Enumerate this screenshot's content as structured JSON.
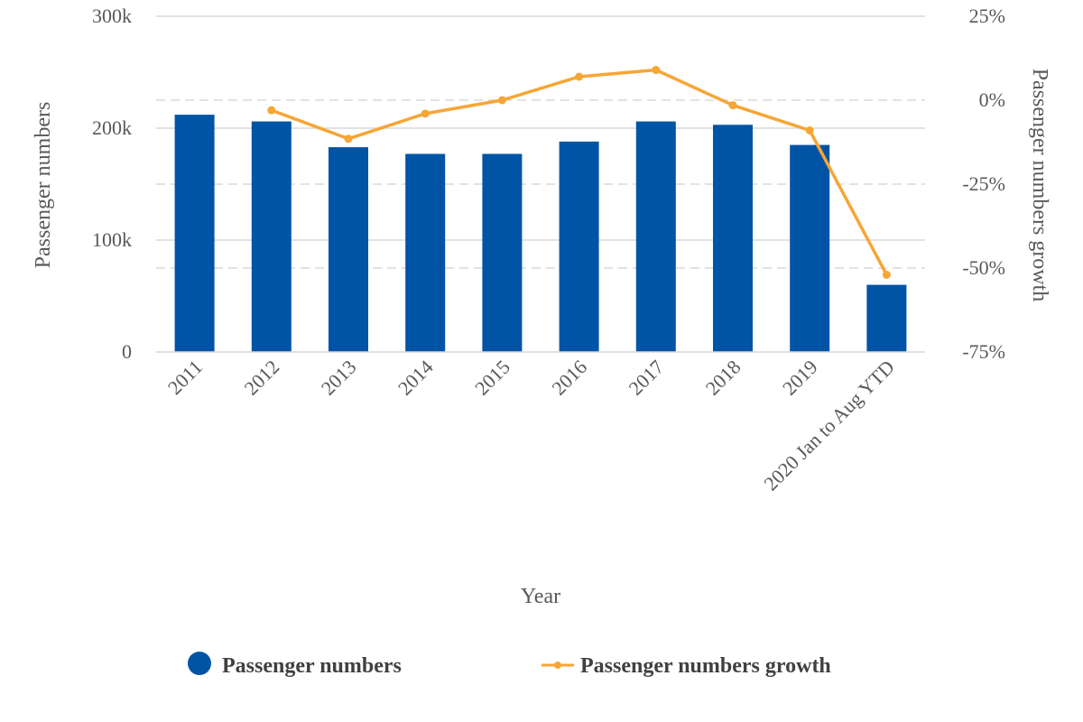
{
  "colors": {
    "bar": "#0054A6",
    "line": "#F7A535",
    "grid": "#D9D9D9",
    "axis_text": "#595959"
  },
  "chart_data": {
    "type": "bar+line",
    "categories": [
      "2011",
      "2012",
      "2013",
      "2014",
      "2015",
      "2016",
      "2017",
      "2018",
      "2019",
      "2020 Jan to Aug YTD"
    ],
    "xlabel": "Year",
    "ylabel_left": "Passenger numbers",
    "ylabel_right": "Passenger numbers growth",
    "ylim_left": [
      0,
      300000
    ],
    "yticks_left": [
      {
        "value": 0,
        "label": "0"
      },
      {
        "value": 100000,
        "label": "100k"
      },
      {
        "value": 200000,
        "label": "200k"
      },
      {
        "value": 300000,
        "label": "300k"
      }
    ],
    "ylim_right": [
      -75,
      25
    ],
    "yticks_right": [
      {
        "value": 25,
        "label": "25%"
      },
      {
        "value": 0,
        "label": "0%"
      },
      {
        "value": -25,
        "label": "-25%"
      },
      {
        "value": -50,
        "label": "-50%"
      },
      {
        "value": -75,
        "label": "-75%"
      }
    ],
    "grid": true,
    "legend_position": "bottom",
    "series": [
      {
        "name": "Passenger numbers",
        "type": "bar",
        "axis": "left",
        "values": [
          212000,
          206000,
          183000,
          177000,
          177000,
          188000,
          206000,
          203000,
          185000,
          60000
        ]
      },
      {
        "name": "Passenger numbers growth",
        "type": "line",
        "axis": "right",
        "values": [
          null,
          -3,
          -11.5,
          -4,
          0,
          7,
          9,
          -1.5,
          -9,
          -52
        ]
      }
    ]
  }
}
